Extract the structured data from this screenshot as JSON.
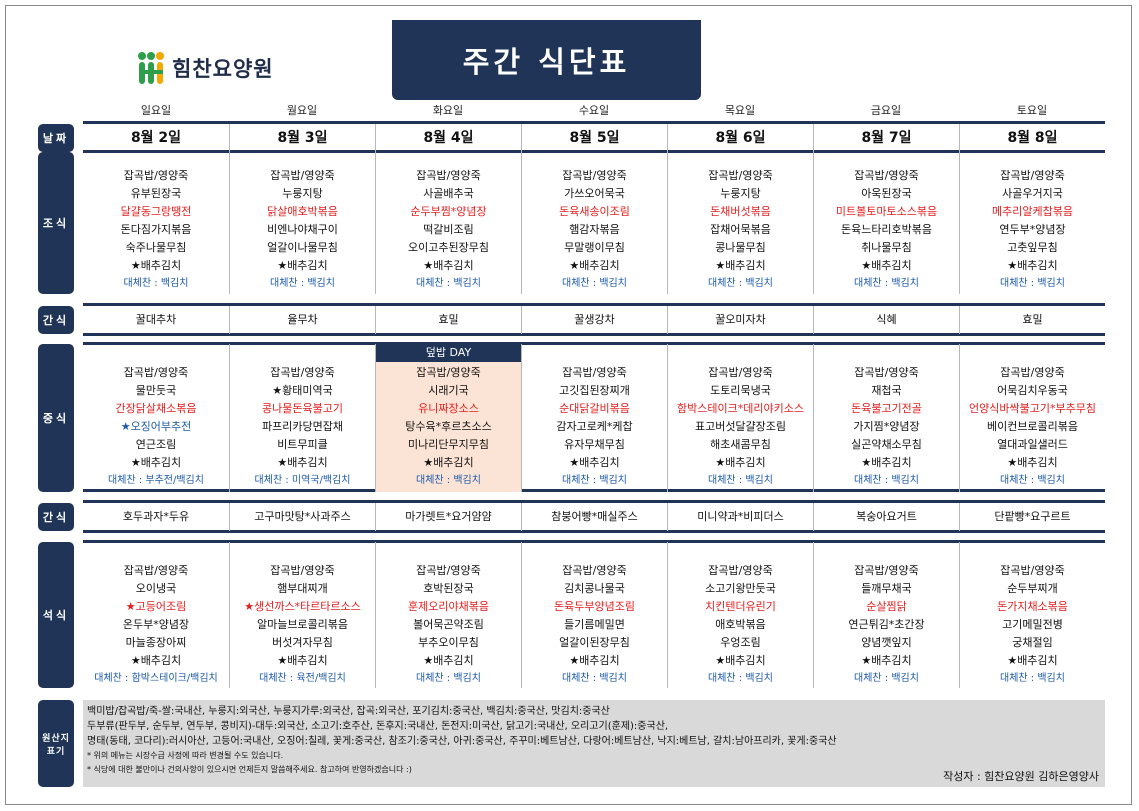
{
  "logo": {
    "text": "힘찬요양원"
  },
  "title": "주간 식단표",
  "days": [
    "일요일",
    "월요일",
    "화요일",
    "수요일",
    "목요일",
    "금요일",
    "토요일"
  ],
  "labels": {
    "date": "날짜",
    "breakfast": "조식",
    "snack1": "간식",
    "lunch": "중식",
    "snack2": "간식",
    "dinner": "석식",
    "origin": "원산지 표기"
  },
  "dates": [
    "8월 2일",
    "8월 3일",
    "8월 4일",
    "8월 5일",
    "8월 6일",
    "8월 7일",
    "8월 8일"
  ],
  "breakfast": [
    {
      "items": [
        {
          "t": "잡곡밥/영양죽",
          "c": ""
        },
        {
          "t": "유부된장국",
          "c": ""
        },
        {
          "t": "달걀동그랑땡전",
          "c": "red"
        },
        {
          "t": "돈다짐가지볶음",
          "c": ""
        },
        {
          "t": "숙주나물무침",
          "c": ""
        },
        {
          "t": "★배추김치",
          "c": "kimchi"
        },
        {
          "t": "대체찬 : 백김치",
          "c": "alt"
        }
      ]
    },
    {
      "items": [
        {
          "t": "잡곡밥/영양죽",
          "c": ""
        },
        {
          "t": "누룽지탕",
          "c": ""
        },
        {
          "t": "닭살애호박볶음",
          "c": "red"
        },
        {
          "t": "비엔나야채구이",
          "c": ""
        },
        {
          "t": "얼갈이나물무침",
          "c": ""
        },
        {
          "t": "★배추김치",
          "c": "kimchi"
        },
        {
          "t": "대체찬 : 백김치",
          "c": "alt"
        }
      ]
    },
    {
      "items": [
        {
          "t": "잡곡밥/영양죽",
          "c": ""
        },
        {
          "t": "사골배추국",
          "c": ""
        },
        {
          "t": "순두부찜*양념장",
          "c": "red"
        },
        {
          "t": "떡갈비조림",
          "c": ""
        },
        {
          "t": "오이고추된장무침",
          "c": ""
        },
        {
          "t": "★배추김치",
          "c": "kimchi"
        },
        {
          "t": "대체찬 : 백김치",
          "c": "alt"
        }
      ]
    },
    {
      "items": [
        {
          "t": "잡곡밥/영양죽",
          "c": ""
        },
        {
          "t": "가쓰오어묵국",
          "c": ""
        },
        {
          "t": "돈육새송이조림",
          "c": "red"
        },
        {
          "t": "햄감자볶음",
          "c": ""
        },
        {
          "t": "무말랭이무침",
          "c": ""
        },
        {
          "t": "★배추김치",
          "c": "kimchi"
        },
        {
          "t": "대체찬 : 백김치",
          "c": "alt"
        }
      ]
    },
    {
      "items": [
        {
          "t": "잡곡밥/영양죽",
          "c": ""
        },
        {
          "t": "누룽지탕",
          "c": ""
        },
        {
          "t": "돈채버섯볶음",
          "c": "red"
        },
        {
          "t": "잡채어묵볶음",
          "c": ""
        },
        {
          "t": "콩나물무침",
          "c": ""
        },
        {
          "t": "★배추김치",
          "c": "kimchi"
        },
        {
          "t": "대체찬 : 백김치",
          "c": "alt"
        }
      ]
    },
    {
      "items": [
        {
          "t": "잡곡밥/영양죽",
          "c": ""
        },
        {
          "t": "아욱된장국",
          "c": ""
        },
        {
          "t": "미트볼토마토소스볶음",
          "c": "red"
        },
        {
          "t": "돈육느타리호박볶음",
          "c": ""
        },
        {
          "t": "취나물무침",
          "c": ""
        },
        {
          "t": "★배추김치",
          "c": "kimchi"
        },
        {
          "t": "대체찬 : 백김치",
          "c": "alt"
        }
      ]
    },
    {
      "items": [
        {
          "t": "잡곡밥/영양죽",
          "c": ""
        },
        {
          "t": "사골우거지국",
          "c": ""
        },
        {
          "t": "메추리알케찹볶음",
          "c": "red"
        },
        {
          "t": "연두부*양념장",
          "c": ""
        },
        {
          "t": "고춧잎무침",
          "c": ""
        },
        {
          "t": "★배추김치",
          "c": "kimchi"
        },
        {
          "t": "대체찬 : 백김치",
          "c": "alt"
        }
      ]
    }
  ],
  "snack1": [
    "꿀대추차",
    "율무차",
    "효밀",
    "꿀생강차",
    "꿀오미자차",
    "식혜",
    "효밀"
  ],
  "lunch": [
    {
      "banner": "",
      "items": [
        {
          "t": "잡곡밥/영양죽",
          "c": ""
        },
        {
          "t": "물만둣국",
          "c": ""
        },
        {
          "t": "간장닭살채소볶음",
          "c": "red"
        },
        {
          "t": "★오징어부추전",
          "c": "blue"
        },
        {
          "t": "연근조림",
          "c": ""
        },
        {
          "t": "★배추김치",
          "c": "kimchi"
        },
        {
          "t": "대체찬 : 부추전/백김치",
          "c": "alt"
        }
      ]
    },
    {
      "banner": "",
      "items": [
        {
          "t": "잡곡밥/영양죽",
          "c": ""
        },
        {
          "t": "★황태미역국",
          "c": "kimchi"
        },
        {
          "t": "콩나물돈육불고기",
          "c": "red"
        },
        {
          "t": "파프리카당면잡채",
          "c": ""
        },
        {
          "t": "비트무피클",
          "c": ""
        },
        {
          "t": "★배추김치",
          "c": "kimchi"
        },
        {
          "t": "대체찬 : 미역국/백김치",
          "c": "alt"
        }
      ]
    },
    {
      "banner": "덮밥 DAY",
      "items": [
        {
          "t": "잡곡밥/영양죽",
          "c": ""
        },
        {
          "t": "시래기국",
          "c": ""
        },
        {
          "t": "유니짜장소스",
          "c": "red"
        },
        {
          "t": "탕수육*후르츠소스",
          "c": ""
        },
        {
          "t": "미나리단무지무침",
          "c": ""
        },
        {
          "t": "★배추김치",
          "c": "kimchi"
        },
        {
          "t": "대체찬 : 백김치",
          "c": "alt"
        }
      ]
    },
    {
      "banner": "",
      "items": [
        {
          "t": "잡곡밥/영양죽",
          "c": ""
        },
        {
          "t": "고깃집된장찌개",
          "c": ""
        },
        {
          "t": "순대닭갈비볶음",
          "c": "red"
        },
        {
          "t": "감자고로케*케찹",
          "c": ""
        },
        {
          "t": "유자무채무침",
          "c": ""
        },
        {
          "t": "★배추김치",
          "c": "kimchi"
        },
        {
          "t": "대체찬 : 백김치",
          "c": "alt"
        }
      ]
    },
    {
      "banner": "",
      "items": [
        {
          "t": "잡곡밥/영양죽",
          "c": ""
        },
        {
          "t": "도토리묵냉국",
          "c": ""
        },
        {
          "t": "함박스테이크*데리야키소스",
          "c": "red"
        },
        {
          "t": "표고버섯달걀장조림",
          "c": ""
        },
        {
          "t": "해초새콤무침",
          "c": ""
        },
        {
          "t": "★배추김치",
          "c": "kimchi"
        },
        {
          "t": "대체찬 : 백김치",
          "c": "alt"
        }
      ]
    },
    {
      "banner": "",
      "items": [
        {
          "t": "잡곡밥/영양죽",
          "c": ""
        },
        {
          "t": "재첩국",
          "c": ""
        },
        {
          "t": "돈육불고기전골",
          "c": "red"
        },
        {
          "t": "가지찜*양념장",
          "c": ""
        },
        {
          "t": "실곤약채소무침",
          "c": ""
        },
        {
          "t": "★배추김치",
          "c": "kimchi"
        },
        {
          "t": "대체찬 : 백김치",
          "c": "alt"
        }
      ]
    },
    {
      "banner": "",
      "items": [
        {
          "t": "잡곡밥/영양죽",
          "c": ""
        },
        {
          "t": "어묵김치우동국",
          "c": ""
        },
        {
          "t": "언양식바싹불고기*부추무침",
          "c": "red"
        },
        {
          "t": "베이컨브로콜리볶음",
          "c": ""
        },
        {
          "t": "열대과일샐러드",
          "c": ""
        },
        {
          "t": "★배추김치",
          "c": "kimchi"
        },
        {
          "t": "대체찬 : 백김치",
          "c": "alt"
        }
      ]
    }
  ],
  "snack2": [
    "호두과자*두유",
    "고구마맛탕*사과주스",
    "마가렛트*요거얌얌",
    "참붕어빵*매실주스",
    "미니약과*비피더스",
    "복숭아요거트",
    "단팥빵*요구르트"
  ],
  "dinner": [
    {
      "items": [
        {
          "t": "잡곡밥/영양죽",
          "c": ""
        },
        {
          "t": "오이냉국",
          "c": ""
        },
        {
          "t": "★고등어조림",
          "c": "red"
        },
        {
          "t": "온두부*양념장",
          "c": ""
        },
        {
          "t": "마늘종장아찌",
          "c": ""
        },
        {
          "t": "★배추김치",
          "c": "kimchi"
        },
        {
          "t": "대체찬 : 함박스테이크/백김치",
          "c": "alt"
        }
      ]
    },
    {
      "items": [
        {
          "t": "잡곡밥/영양죽",
          "c": ""
        },
        {
          "t": "햄부대찌개",
          "c": ""
        },
        {
          "t": "★생선까스*타르타르소스",
          "c": "red"
        },
        {
          "t": "알마늘브로콜리볶음",
          "c": ""
        },
        {
          "t": "버섯겨자무침",
          "c": ""
        },
        {
          "t": "★배추김치",
          "c": "kimchi"
        },
        {
          "t": "대체찬 : 육전/백김치",
          "c": "alt"
        }
      ]
    },
    {
      "items": [
        {
          "t": "잡곡밥/영양죽",
          "c": ""
        },
        {
          "t": "호박된장국",
          "c": ""
        },
        {
          "t": "훈제오리야채볶음",
          "c": "red"
        },
        {
          "t": "볼어묵곤약조림",
          "c": ""
        },
        {
          "t": "부추오이무침",
          "c": ""
        },
        {
          "t": "★배추김치",
          "c": "kimchi"
        },
        {
          "t": "대체찬 : 백김치",
          "c": "alt"
        }
      ]
    },
    {
      "items": [
        {
          "t": "잡곡밥/영양죽",
          "c": ""
        },
        {
          "t": "김치콩나물국",
          "c": ""
        },
        {
          "t": "돈육두부양념조림",
          "c": "red"
        },
        {
          "t": "들기름메밀면",
          "c": ""
        },
        {
          "t": "얼갈이된장무침",
          "c": ""
        },
        {
          "t": "★배추김치",
          "c": "kimchi"
        },
        {
          "t": "대체찬 : 백김치",
          "c": "alt"
        }
      ]
    },
    {
      "items": [
        {
          "t": "잡곡밥/영양죽",
          "c": ""
        },
        {
          "t": "소고기왕만둣국",
          "c": ""
        },
        {
          "t": "치킨텐더유린기",
          "c": "red"
        },
        {
          "t": "애호박볶음",
          "c": ""
        },
        {
          "t": "우엉조림",
          "c": ""
        },
        {
          "t": "★배추김치",
          "c": "kimchi"
        },
        {
          "t": "대체찬 : 백김치",
          "c": "alt"
        }
      ]
    },
    {
      "items": [
        {
          "t": "잡곡밥/영양죽",
          "c": ""
        },
        {
          "t": "들깨무채국",
          "c": ""
        },
        {
          "t": "순살찜닭",
          "c": "red"
        },
        {
          "t": "연근튀김*초간장",
          "c": ""
        },
        {
          "t": "양념깻잎지",
          "c": ""
        },
        {
          "t": "★배추김치",
          "c": "kimchi"
        },
        {
          "t": "대체찬 : 백김치",
          "c": "alt"
        }
      ]
    },
    {
      "items": [
        {
          "t": "잡곡밥/영양죽",
          "c": ""
        },
        {
          "t": "순두부찌개",
          "c": ""
        },
        {
          "t": "돈가지채소볶음",
          "c": "red"
        },
        {
          "t": "고기메밀전병",
          "c": ""
        },
        {
          "t": "궁채절임",
          "c": ""
        },
        {
          "t": "★배추김치",
          "c": "kimchi"
        },
        {
          "t": "대체찬 : 백김치",
          "c": "alt"
        }
      ]
    }
  ],
  "origin": {
    "lines": [
      "백미밥/잡곡밥/죽-쌀:국내산, 누룽지:외국산, 누룽지가루:외국산, 잡곡:외국산, 포기김치:중국산, 백김치:중국산, 맛김치:중국산",
      "두부류(판두부, 순두부, 연두부, 콩비지)-대두:외국산, 소고기:호주산, 돈후지:국내산, 돈전지:미국산, 닭고기:국내산, 오리고기(훈제):중국산,",
      "명태(동태, 코다리):러시아산, 고등어:국내산, 오징어:칠레, 꽃게:중국산, 참조기:중국산, 아귀:중국산, 주꾸미:베트남산, 다랑어:베트남산, 낙지:베트남, 갈치:남아프리카, 꽃게:중국산"
    ],
    "notes": [
      "* 위의 메뉴는 시장수급 사정에 따라 변경될 수도 있습니다.",
      "* 식당에 대한 불만이나 건의사항이 있으시면 언제든지 말씀해주세요. 참고하여 반영하겠습니다 :)"
    ],
    "author": "작성자 : 힘찬요양원 김하은영양사"
  }
}
